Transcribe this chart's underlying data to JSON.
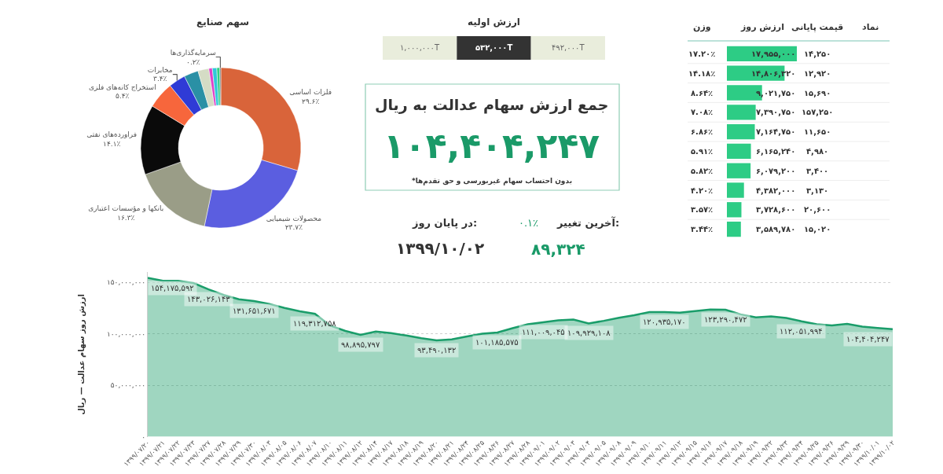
{
  "chart_data": [
    {
      "type": "donut",
      "title": "سهم صنایع",
      "categories": [
        "فلزات اساسی",
        "محصولات شیمیایی",
        "بانکها و مؤسسات اعتباری",
        "فراورده‌های نفتی",
        "استخراج کانه‌های فلزی",
        "مخابرات",
        null,
        null,
        null,
        null,
        null,
        "سرمایه‌گذاری‌ها"
      ],
      "values": [
        29.6,
        23.7,
        16.3,
        14.1,
        5.4,
        3.4,
        2.9,
        2.2,
        0.7,
        0.9,
        0.6,
        0.2
      ],
      "value_labels": [
        "۲۹.۶٪",
        "۲۳.۷٪",
        "۱۶.۳٪",
        "۱۴.۱٪",
        "۵.۴٪",
        "۳.۴٪",
        null,
        null,
        null,
        null,
        null,
        "۰.۲٪"
      ],
      "colors": [
        "#d9643a",
        "#5b5ee0",
        "#9a9d87",
        "#0a0a0a",
        "#f7663c",
        "#2f3bd6",
        "#2a90a5",
        "#d5dcc5",
        "#e040c8",
        "#30c8d8",
        "#30d080",
        "#606060"
      ]
    },
    {
      "type": "other",
      "title": "ارزش اولیه",
      "categories": [
        "۱,۰۰۰,۰۰۰T",
        "۵۳۲,۰۰۰T",
        "۴۹۲,۰۰۰T"
      ],
      "colors": [
        "#e9eddc",
        "#333333",
        "#e9eddc"
      ]
    },
    {
      "type": "other",
      "title": "جمع ارزش سهام عدالت به ریال",
      "annotations": [
        "۱۰۴,۴۰۴,۲۴۷",
        "*بدون احتساب سهام غیربورسی و حق تقدم‌ها",
        "آخرین تغییر:",
        "۰.۱٪",
        "۸۹,۳۲۴",
        "در پایان روز:",
        "۱۳۹۹/۱۰/۰۲"
      ],
      "color": "#1a9a68"
    },
    {
      "type": "bar",
      "orientation": "horizontal",
      "xlabel": "ارزش روز",
      "ylabel": "نماد",
      "categories": [
        null,
        null,
        null,
        null,
        null,
        null,
        null,
        null,
        null,
        null
      ],
      "values": [
        17955000,
        14806320,
        9021750,
        7390750,
        7164750,
        6165240,
        6079200,
        4382000,
        3728600,
        3589780
      ],
      "value_labels": [
        "۱۷,۹۵۵,۰۰۰",
        "۱۴,۸۰۶,۳۲۰",
        "۹,۰۲۱,۷۵۰",
        "۷,۳۹۰,۷۵۰",
        "۷,۱۶۴,۷۵۰",
        "۶,۱۶۵,۲۴۰",
        "۶,۰۷۹,۲۰۰",
        "۴,۳۸۲,۰۰۰",
        "۳,۷۲۸,۶۰۰",
        "۳,۵۸۹,۷۸۰"
      ],
      "color": "#2dcc85",
      "annotations": [
        "قیمت پایانی",
        "۱۴,۲۵۰",
        "۱۲,۹۲۰",
        "۱۵,۶۹۰",
        "۱۵۷,۲۵۰",
        "۱۱,۶۵۰",
        "۴,۹۸۰",
        "۳,۴۰۰",
        "۳,۱۳۰",
        "۲۰,۶۰۰",
        "۱۵,۰۲۰",
        "وزن",
        "۱۷.۲۰٪",
        "۱۴.۱۸٪",
        "۸.۶۴٪",
        "۷.۰۸٪",
        "۶.۸۶٪",
        "۵.۹۱٪",
        "۵.۸۲٪",
        "۴.۲۰٪",
        "۳.۵۷٪",
        "۳.۴۴٪"
      ]
    },
    {
      "type": "area",
      "ylabel": "ارزش روز سهام عدالت — ریال",
      "color": "#1a9d6a",
      "grid": "y",
      "ylim": [
        0,
        160000000
      ],
      "yticks": [
        {
          "value": 0,
          "label": "۰"
        },
        {
          "value": 50000000,
          "label": "۵۰,۰۰۰,۰۰۰"
        },
        {
          "value": 100000000,
          "label": "۱۰۰,۰۰۰,۰۰۰"
        },
        {
          "value": 150000000,
          "label": "۱۵۰,۰۰۰,۰۰۰"
        }
      ],
      "categories": [
        "۱۳۹۹/۰۷/۲۰",
        "۱۳۹۹/۰۷/۲۱",
        "۱۳۹۹/۰۷/۲۲",
        "۱۳۹۹/۰۷/۲۳",
        "۱۳۹۹/۰۷/۲۷",
        "۱۳۹۹/۰۷/۲۸",
        "۱۳۹۹/۰۷/۲۹",
        "۱۳۹۹/۰۷/۳۰",
        "۱۳۹۹/۰۸/۰۳",
        "۱۳۹۹/۰۸/۰۵",
        "۱۳۹۹/۰۸/۰۶",
        "۱۳۹۹/۰۸/۰۷",
        "۱۳۹۹/۰۸/۱۰",
        "۱۳۹۹/۰۸/۱۱",
        "۱۳۹۹/۰۸/۱۲",
        "۱۳۹۹/۰۸/۱۴",
        "۱۳۹۹/۰۸/۱۷",
        "۱۳۹۹/۰۸/۱۸",
        "۱۳۹۹/۰۸/۱۹",
        "۱۳۹۹/۰۸/۲۰",
        "۱۳۹۹/۰۸/۲۱",
        "۱۳۹۹/۰۸/۲۴",
        "۱۳۹۹/۰۸/۲۵",
        "۱۳۹۹/۰۸/۲۶",
        "۱۳۹۹/۰۸/۲۷",
        "۱۳۹۹/۰۸/۲۸",
        "۱۳۹۹/۰۹/۰۱",
        "۱۳۹۹/۰۹/۰۲",
        "۱۳۹۹/۰۹/۰۳",
        "۱۳۹۹/۰۹/۰۴",
        "۱۳۹۹/۰۹/۰۵",
        "۱۳۹۹/۰۹/۰۸",
        "۱۳۹۹/۰۹/۰۹",
        "۱۳۹۹/۰۹/۱۰",
        "۱۳۹۹/۰۹/۱۱",
        "۱۳۹۹/۰۹/۱۲",
        "۱۳۹۹/۰۹/۱۵",
        "۱۳۹۹/۰۹/۱۶",
        "۱۳۹۹/۰۹/۱۷",
        "۱۳۹۹/۰۹/۱۸",
        "۱۳۹۹/۰۹/۱۹",
        "۱۳۹۹/۰۹/۲۲",
        "۱۳۹۹/۰۹/۲۳",
        "۱۳۹۹/۰۹/۲۴",
        "۱۳۹۹/۰۹/۲۵",
        "۱۳۹۹/۰۹/۲۶",
        "۱۳۹۹/۰۹/۲۹",
        "۱۳۹۹/۰۹/۳۰",
        "۱۳۹۹/۱۰/۰۱",
        "۱۳۹۹/۱۰/۰۲"
      ],
      "values": [
        154175592,
        151400000,
        151300000,
        149200000,
        143026143,
        137600000,
        133400000,
        131651671,
        128900000,
        125000000,
        121800000,
        119312758,
        107900000,
        102700000,
        98895797,
        102000000,
        100500000,
        98200000,
        95600000,
        93490132,
        94500000,
        97300000,
        100000000,
        101185575,
        105300000,
        109200000,
        111009045,
        112900000,
        113700000,
        109929108,
        112500000,
        115500000,
        118000000,
        121000000,
        120935170,
        120500000,
        122000000,
        123500000,
        123290472,
        118800000,
        115800000,
        116800000,
        115300000,
        112051994,
        109200000,
        108000000,
        109600000,
        106800000,
        105500000,
        104404247
      ],
      "value_labels": [
        "۱۵۴,۱۷۵,۵۹۲",
        null,
        null,
        null,
        "۱۴۳,۰۲۶,۱۴۳",
        null,
        null,
        "۱۳۱,۶۵۱,۶۷۱",
        null,
        null,
        null,
        "۱۱۹,۳۱۲,۷۵۸",
        null,
        null,
        "۹۸,۸۹۵,۷۹۷",
        null,
        null,
        null,
        null,
        "۹۳,۴۹۰,۱۳۲",
        null,
        null,
        null,
        "۱۰۱,۱۸۵,۵۷۵",
        null,
        null,
        "۱۱۱,۰۰۹,۰۴۵",
        null,
        null,
        "۱۰۹,۹۲۹,۱۰۸",
        null,
        null,
        null,
        null,
        "۱۲۰,۹۳۵,۱۷۰",
        null,
        null,
        null,
        "۱۲۳,۲۹۰,۴۷۲",
        null,
        null,
        null,
        null,
        "۱۱۲,۰۵۱,۹۹۴",
        null,
        null,
        null,
        null,
        null,
        "۱۰۴,۴۰۴,۲۴۷"
      ]
    }
  ]
}
